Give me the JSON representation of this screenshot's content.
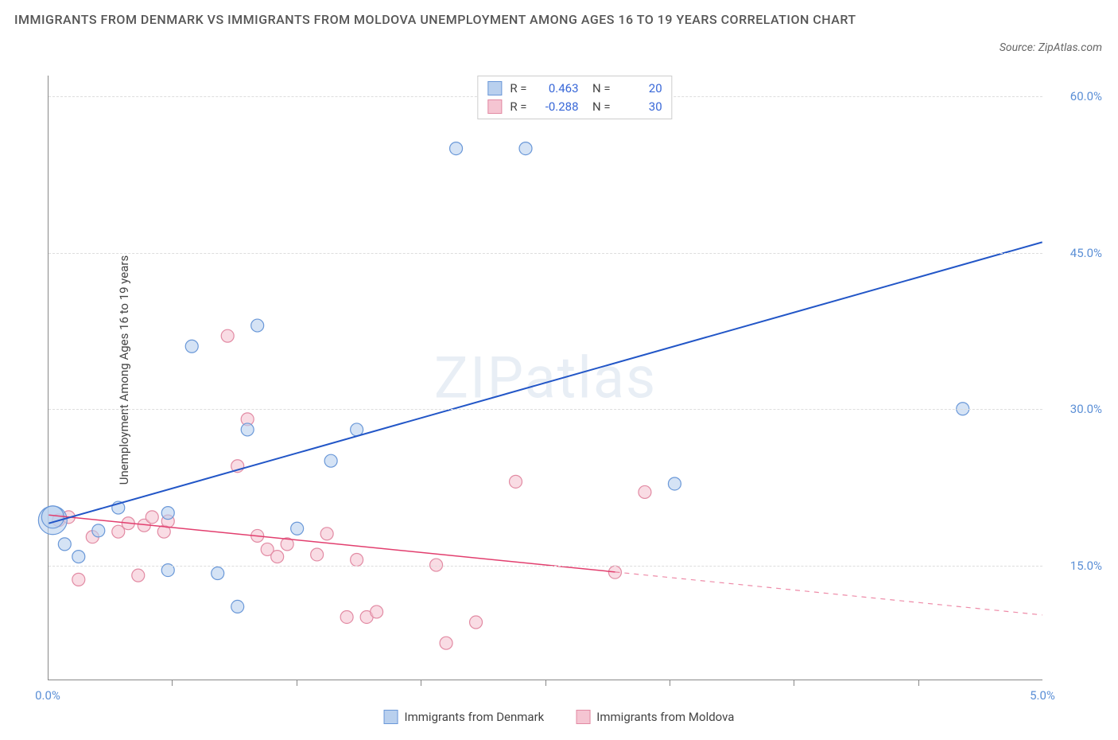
{
  "title": "IMMIGRANTS FROM DENMARK VS IMMIGRANTS FROM MOLDOVA UNEMPLOYMENT AMONG AGES 16 TO 19 YEARS CORRELATION CHART",
  "source_label": "Source: ZipAtlas.com",
  "y_axis_label": "Unemployment Among Ages 16 to 19 years",
  "watermark": "ZIPatlas",
  "chart": {
    "type": "scatter-with-regression",
    "background_color": "#ffffff",
    "grid_color": "#dddddd",
    "axis_color": "#888888",
    "tick_label_color": "#5b8fd6",
    "x_range": [
      0.0,
      5.0
    ],
    "y_range": [
      4.0,
      62.0
    ],
    "x_ticks": [
      0.0,
      5.0
    ],
    "x_tick_labels": [
      "0.0%",
      "5.0%"
    ],
    "x_minor_ticks": [
      0.625,
      1.25,
      1.875,
      2.5,
      3.125,
      3.75,
      4.375
    ],
    "y_ticks": [
      15.0,
      30.0,
      45.0,
      60.0
    ],
    "y_tick_labels": [
      "15.0%",
      "30.0%",
      "45.0%",
      "60.0%"
    ],
    "series": [
      {
        "name": "Immigrants from Denmark",
        "marker_fill": "#b9d0ee",
        "marker_stroke": "#6a98d8",
        "marker_fill_opacity": 0.6,
        "line_color": "#2256c7",
        "line_width": 2,
        "marker_radius": 8,
        "r_value": "0.463",
        "n_value": "20",
        "regression": {
          "x1": 0.0,
          "y1": 19.0,
          "x2": 5.0,
          "y2": 46.0,
          "solid_until_x": 5.0
        },
        "points": [
          {
            "x": 0.02,
            "y": 19.3,
            "r": 18
          },
          {
            "x": 0.02,
            "y": 19.6,
            "r": 14
          },
          {
            "x": 0.08,
            "y": 17.0
          },
          {
            "x": 0.25,
            "y": 18.3
          },
          {
            "x": 0.15,
            "y": 15.8
          },
          {
            "x": 0.35,
            "y": 20.5
          },
          {
            "x": 0.6,
            "y": 20.0
          },
          {
            "x": 0.6,
            "y": 14.5
          },
          {
            "x": 0.85,
            "y": 14.2
          },
          {
            "x": 0.72,
            "y": 36.0
          },
          {
            "x": 1.0,
            "y": 28.0
          },
          {
            "x": 0.95,
            "y": 11.0
          },
          {
            "x": 1.05,
            "y": 38.0
          },
          {
            "x": 1.25,
            "y": 18.5
          },
          {
            "x": 1.42,
            "y": 25.0
          },
          {
            "x": 1.55,
            "y": 28.0
          },
          {
            "x": 2.05,
            "y": 55.0
          },
          {
            "x": 2.4,
            "y": 55.0
          },
          {
            "x": 3.15,
            "y": 22.8
          },
          {
            "x": 4.6,
            "y": 30.0
          }
        ]
      },
      {
        "name": "Immigrants from Moldova",
        "marker_fill": "#f5c5d2",
        "marker_stroke": "#e28aa3",
        "marker_fill_opacity": 0.6,
        "line_color": "#e23e6e",
        "line_width": 1.5,
        "marker_radius": 8,
        "r_value": "-0.288",
        "n_value": "30",
        "regression": {
          "x1": 0.0,
          "y1": 19.8,
          "x2": 5.0,
          "y2": 10.2,
          "solid_until_x": 2.85
        },
        "points": [
          {
            "x": 0.05,
            "y": 19.3
          },
          {
            "x": 0.1,
            "y": 19.6
          },
          {
            "x": 0.15,
            "y": 13.6
          },
          {
            "x": 0.22,
            "y": 17.7
          },
          {
            "x": 0.35,
            "y": 18.2
          },
          {
            "x": 0.4,
            "y": 19.0
          },
          {
            "x": 0.45,
            "y": 14.0
          },
          {
            "x": 0.48,
            "y": 18.8
          },
          {
            "x": 0.52,
            "y": 19.6
          },
          {
            "x": 0.58,
            "y": 18.2
          },
          {
            "x": 0.6,
            "y": 19.2
          },
          {
            "x": 0.9,
            "y": 37.0
          },
          {
            "x": 0.95,
            "y": 24.5
          },
          {
            "x": 1.0,
            "y": 29.0
          },
          {
            "x": 1.05,
            "y": 17.8
          },
          {
            "x": 1.1,
            "y": 16.5
          },
          {
            "x": 1.15,
            "y": 15.8
          },
          {
            "x": 1.2,
            "y": 17.0
          },
          {
            "x": 1.35,
            "y": 16.0
          },
          {
            "x": 1.4,
            "y": 18.0
          },
          {
            "x": 1.5,
            "y": 10.0
          },
          {
            "x": 1.55,
            "y": 15.5
          },
          {
            "x": 1.6,
            "y": 10.0
          },
          {
            "x": 1.65,
            "y": 10.5
          },
          {
            "x": 1.95,
            "y": 15.0
          },
          {
            "x": 2.0,
            "y": 7.5
          },
          {
            "x": 2.15,
            "y": 9.5
          },
          {
            "x": 2.35,
            "y": 23.0
          },
          {
            "x": 2.85,
            "y": 14.3
          },
          {
            "x": 3.0,
            "y": 22.0
          }
        ]
      }
    ]
  },
  "legend_bottom": [
    {
      "label": "Immigrants from Denmark",
      "fill": "#b9d0ee",
      "stroke": "#6a98d8"
    },
    {
      "label": "Immigrants from Moldova",
      "fill": "#f5c5d2",
      "stroke": "#e28aa3"
    }
  ]
}
